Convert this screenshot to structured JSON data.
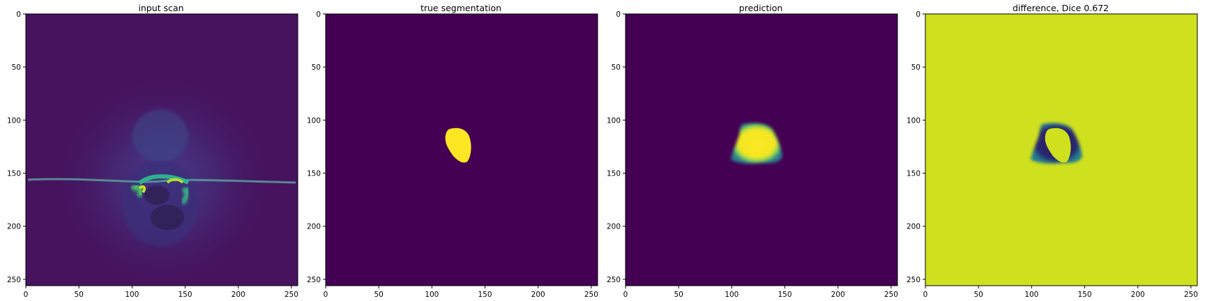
{
  "figure": {
    "panels": [
      {
        "id": "input-scan",
        "title": "input scan",
        "image_kind": "mri-slice",
        "colormap": "viridis"
      },
      {
        "id": "true-segmentation",
        "title": "true segmentation",
        "image_kind": "binary-mask",
        "colormap": "viridis"
      },
      {
        "id": "prediction",
        "title": "prediction",
        "image_kind": "soft-mask",
        "colormap": "viridis"
      },
      {
        "id": "difference",
        "title": "difference, Dice 0.672",
        "image_kind": "difference-map",
        "colormap": "viridis"
      }
    ],
    "x_ticks": [
      "0",
      "50",
      "100",
      "150",
      "200",
      "250"
    ],
    "y_ticks": [
      "0",
      "50",
      "100",
      "150",
      "200",
      "250"
    ],
    "x_range": [
      0,
      256
    ],
    "y_range": [
      0,
      256
    ],
    "colors": {
      "viridis_dark": "#440154",
      "viridis_yellow": "#fde725",
      "difference_bg": "#cfe01f",
      "teal": "#21a585",
      "cyan": "#36b7a0",
      "navy": "#2f2b6b"
    }
  }
}
